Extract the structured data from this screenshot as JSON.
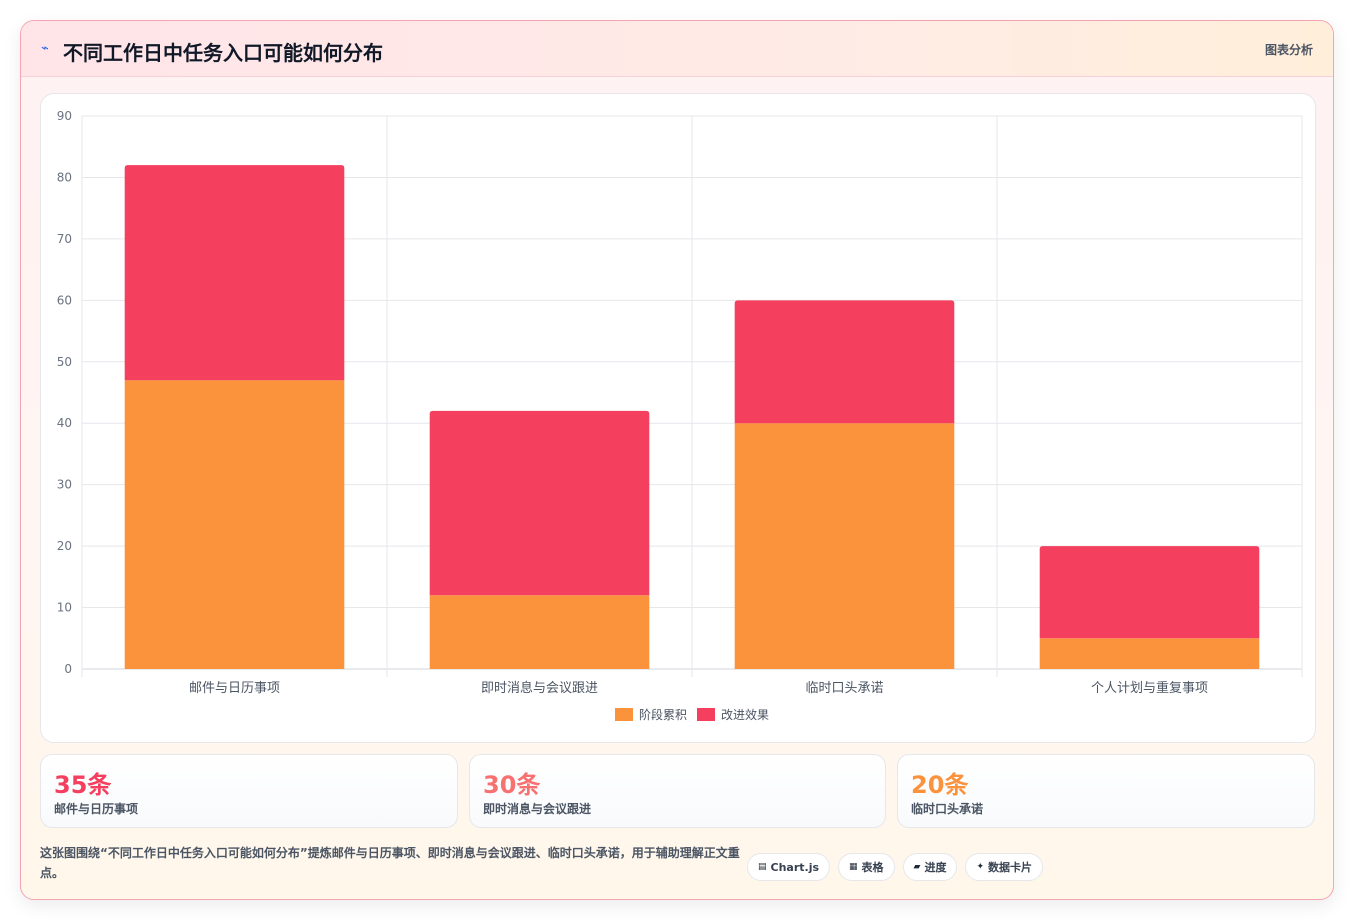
{
  "header": {
    "title": "不同工作日中任务入口可能如何分布",
    "tag": "图表分析",
    "icon": "pulse-icon",
    "icon_glyph": "⌁"
  },
  "chart_data": {
    "type": "bar",
    "stacked": true,
    "categories": [
      "邮件与日历事项",
      "即时消息与会议跟进",
      "临时口头承诺",
      "个人计划与重复事项"
    ],
    "series": [
      {
        "name": "阶段累积",
        "values": [
          47,
          12,
          40,
          5
        ],
        "color": "#fb923c"
      },
      {
        "name": "改进效果",
        "values": [
          35,
          30,
          20,
          15
        ],
        "color": "#f43f5e"
      }
    ],
    "ylim": [
      0,
      90
    ],
    "yticks": [
      0,
      10,
      20,
      30,
      40,
      50,
      60,
      70,
      80,
      90
    ],
    "grid": true,
    "legend": "bottom"
  },
  "stats": [
    {
      "value": "35条",
      "label": "邮件与日历事项",
      "color": "#f43f5e"
    },
    {
      "value": "30条",
      "label": "即时消息与会议跟进",
      "color": "#f87171"
    },
    {
      "value": "20条",
      "label": "临时口头承诺",
      "color": "#fb923c"
    }
  ],
  "footnote": "这张图围绕“不同工作日中任务入口可能如何分布”提炼邮件与日历事项、即时消息与会议跟进、临时口头承诺，用于辅助理解正文重点。",
  "chips": [
    {
      "icon": "chart-icon",
      "glyph": "▤",
      "label": "Chart.js"
    },
    {
      "icon": "table-icon",
      "glyph": "▦",
      "label": "表格"
    },
    {
      "icon": "progress-icon",
      "glyph": "▰",
      "label": "进度"
    },
    {
      "icon": "sparkle-icon",
      "glyph": "✦",
      "label": "数据卡片"
    }
  ]
}
